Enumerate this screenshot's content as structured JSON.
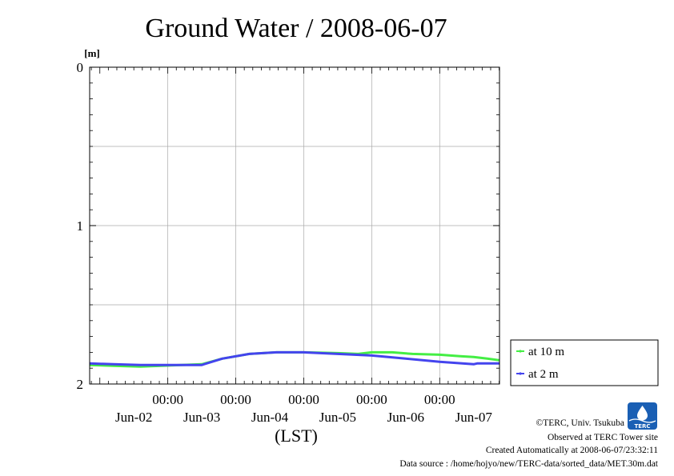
{
  "chart_data": {
    "type": "line",
    "title": "Ground Water / 2008-06-07",
    "ylabel": "[m]",
    "xlabel": "(LST)",
    "ylim": [
      0,
      2
    ],
    "y_inverted": true,
    "y_ticks": [
      "0",
      "1",
      "2"
    ],
    "y_minor_grid_step": 0.5,
    "x_range_days": [
      1.85,
      7.88
    ],
    "x_time_ticks": [
      "00:00",
      "00:00",
      "00:00",
      "00:00",
      "00:00"
    ],
    "x_time_tick_days": [
      3,
      4,
      5,
      6,
      7
    ],
    "x_date_labels": [
      "Jun-02",
      "Jun-03",
      "Jun-04",
      "Jun-05",
      "Jun-06",
      "Jun-07"
    ],
    "x_date_label_days": [
      2.5,
      3.5,
      4.5,
      5.5,
      6.5,
      7.5
    ],
    "grid": true,
    "legend_position": "right",
    "series": [
      {
        "name": "at 10 m",
        "color": "#44ee44",
        "x": [
          1.85,
          2.2,
          2.6,
          2.9,
          3.2,
          3.5,
          3.8,
          4.2,
          4.6,
          5.0,
          5.5,
          5.8,
          6.0,
          6.3,
          6.6,
          7.0,
          7.3,
          7.5,
          7.7,
          7.88
        ],
        "y": [
          1.88,
          1.885,
          1.89,
          1.885,
          1.88,
          1.875,
          1.84,
          1.81,
          1.8,
          1.8,
          1.805,
          1.81,
          1.8,
          1.8,
          1.81,
          1.815,
          1.825,
          1.83,
          1.84,
          1.85
        ]
      },
      {
        "name": "at 2 m",
        "color": "#4444ee",
        "x": [
          1.85,
          2.2,
          2.6,
          2.9,
          3.2,
          3.5,
          3.8,
          4.2,
          4.6,
          5.0,
          5.5,
          6.0,
          6.5,
          7.0,
          7.5,
          7.55,
          7.88
        ],
        "y": [
          1.87,
          1.875,
          1.88,
          1.88,
          1.88,
          1.88,
          1.84,
          1.81,
          1.8,
          1.8,
          1.81,
          1.82,
          1.84,
          1.86,
          1.875,
          1.87,
          1.87
        ]
      }
    ]
  },
  "logo": {
    "text": "TERC",
    "color": "#1a5fb4"
  },
  "credits": {
    "copyright": "©TERC, Univ. Tsukuba",
    "observed": "Observed at TERC Tower site",
    "created": "Created Automatically at 2008-06-07/23:32:11",
    "source": "Data source : /home/hojyo/new/TERC-data/sorted_data/MET.30m.dat"
  }
}
